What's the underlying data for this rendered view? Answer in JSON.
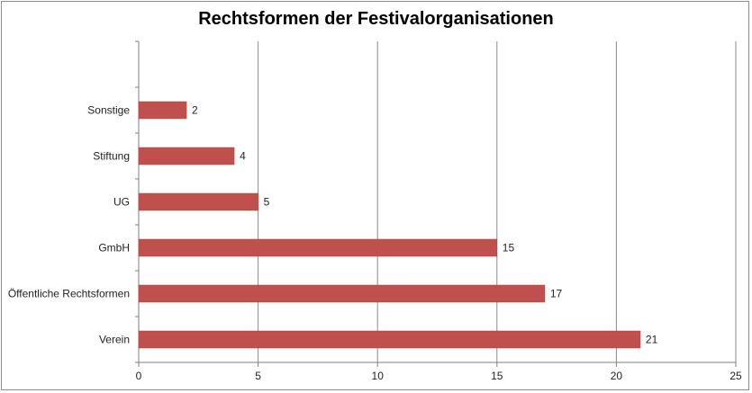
{
  "chart_data": {
    "type": "bar",
    "orientation": "horizontal",
    "title": "Rechtsformen der Festivalorganisationen",
    "categories": [
      "Sonstige",
      "Stiftung",
      "UG",
      "GmbH",
      "Öffentliche Rechtsformen",
      "Verein"
    ],
    "values": [
      2,
      4,
      5,
      15,
      17,
      21
    ],
    "xlim": [
      0,
      25
    ],
    "xticks": [
      0,
      5,
      10,
      15,
      20,
      25
    ],
    "grid": true,
    "bar_color": "#c0504d",
    "data_labels": true
  }
}
